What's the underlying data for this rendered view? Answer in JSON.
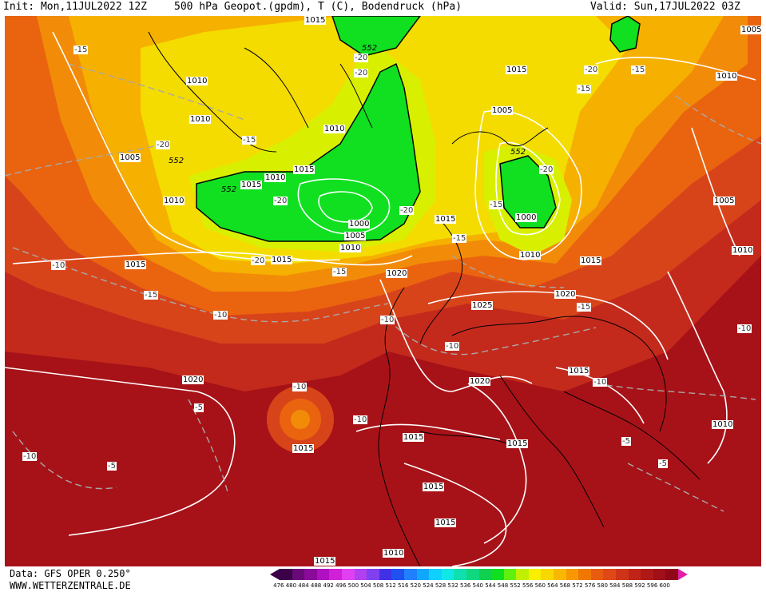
{
  "header": {
    "init": "Init: Mon,11JUL2022 12Z",
    "title": "500 hPa Geopot.(gpdm), T (C), Bodendruck (hPa)",
    "valid": "Valid: Sun,17JUL2022 03Z"
  },
  "footer": {
    "source": "Data: GFS OPER 0.250°",
    "website": "WWW.WETTERZENTRALE.DE"
  },
  "legend": {
    "values": [
      "476",
      "480",
      "484",
      "488",
      "492",
      "496",
      "500",
      "504",
      "508",
      "512",
      "516",
      "520",
      "524",
      "528",
      "532",
      "536",
      "540",
      "544",
      "548",
      "552",
      "556",
      "560",
      "564",
      "568",
      "572",
      "576",
      "580",
      "584",
      "588",
      "592",
      "596",
      "600"
    ],
    "colors": [
      "#3b0048",
      "#6a0a78",
      "#8a0a9a",
      "#b010c0",
      "#d020d8",
      "#e040f0",
      "#b040f0",
      "#8040f0",
      "#4030e8",
      "#2050f0",
      "#2080ff",
      "#10a8ff",
      "#10d0ff",
      "#10e8e8",
      "#10e0b0",
      "#10d880",
      "#10d050",
      "#10e020",
      "#60f010",
      "#c0f000",
      "#f8f000",
      "#f8d800",
      "#f8b800",
      "#f89800",
      "#f07800",
      "#e85c10",
      "#e04818",
      "#d03418",
      "#c02418",
      "#b01818",
      "#a01018",
      "#900818"
    ]
  },
  "map": {
    "isobar_labels": [
      "1015",
      "1010",
      "1010",
      "1005",
      "1010",
      "1015",
      "1015",
      "1010",
      "1000",
      "1005",
      "1010",
      "1015",
      "1015",
      "1015",
      "1010",
      "1005",
      "1000",
      "1010",
      "1015",
      "1020",
      "1020",
      "1025",
      "1020",
      "1015",
      "1015",
      "1015",
      "1015",
      "1015",
      "1010",
      "1005",
      "1010",
      "1010",
      "1020",
      "1015",
      "1015",
      "1010",
      "1015",
      "1005"
    ],
    "temperature_labels": [
      "-15",
      "-20",
      "-15",
      "-20",
      "-20",
      "-20",
      "-15",
      "-20",
      "-20",
      "-15",
      "-10",
      "-15",
      "-10",
      "-10",
      "-10",
      "-10",
      "-10",
      "-5",
      "-10",
      "-5",
      "-10",
      "-5",
      "-5",
      "-15",
      "-20",
      "-15",
      "-15",
      "-20",
      "-10",
      "-15"
    ],
    "geopotential_labels": [
      "552",
      "552",
      "552",
      "552"
    ]
  }
}
